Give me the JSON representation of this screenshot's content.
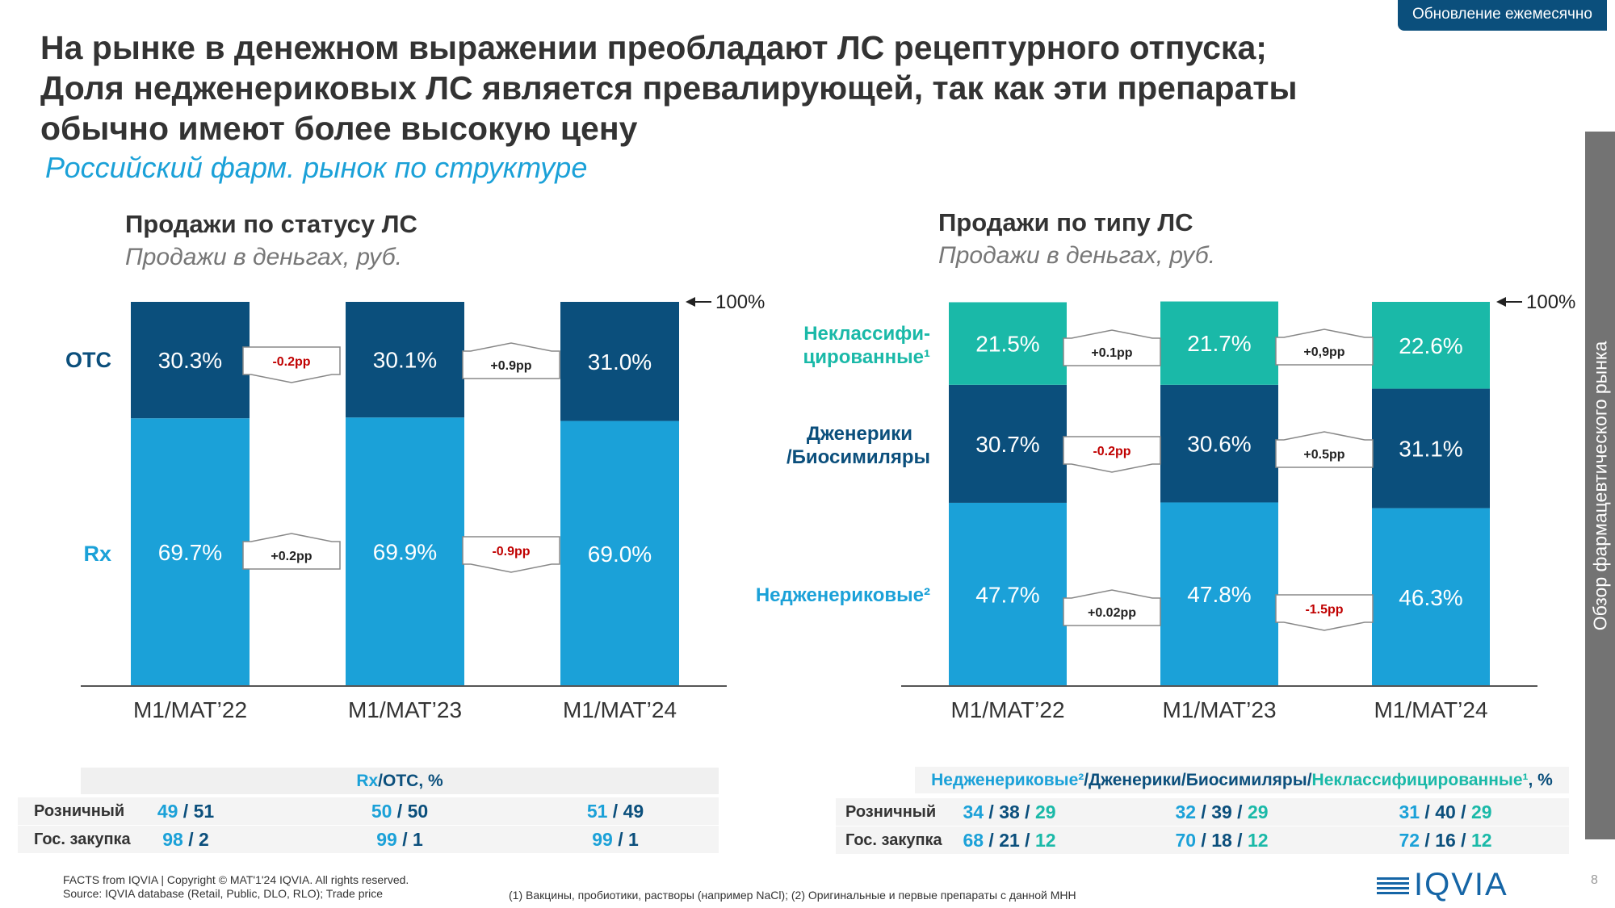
{
  "badge": "Обновление ежемесячно",
  "title_lines": [
    "На рынке в денежном выражении преобладают ЛС рецептурного отпуска;",
    "Доля недженериковых ЛС является превалирующей, так как эти препараты",
    "обычно имеют более высокую цену"
  ],
  "subtitle": "Российский фарм. рынок по структуре",
  "side_tab": "Обзор фармацевтического рынка",
  "colors": {
    "rx": "#1ba1d8",
    "otc": "#0b4f7c",
    "dark_blue": "#0b4f7c",
    "teal": "#1ab9a8",
    "negative": "#c00000"
  },
  "chart_data": [
    {
      "type": "bar",
      "stacked": true,
      "title": "Продажи по статусу ЛС",
      "subtitle": "Продажи в деньгах, руб.",
      "categories": [
        "M1/MAT’22",
        "M1/MAT’23",
        "M1/MAT’24"
      ],
      "series": [
        {
          "name": "Rx",
          "values": [
            69.7,
            69.9,
            69.0
          ],
          "labels": [
            "69.7%",
            "69.9%",
            "69.0%"
          ],
          "color": "#1ba1d8"
        },
        {
          "name": "OTC",
          "values": [
            30.3,
            30.1,
            31.0
          ],
          "labels": [
            "30.3%",
            "30.1%",
            "31.0%"
          ],
          "color": "#0b4f7c"
        }
      ],
      "total_label": "100%",
      "ylim": [
        0,
        100
      ],
      "changes": {
        "OTC": [
          {
            "label": "-0.2pp",
            "direction": "down"
          },
          {
            "label": "+0.9pp",
            "direction": "up"
          }
        ],
        "Rx": [
          {
            "label": "+0.2pp",
            "direction": "up"
          },
          {
            "label": "-0.9pp",
            "direction": "down"
          }
        ]
      }
    },
    {
      "type": "bar",
      "stacked": true,
      "title": "Продажи по типу ЛС",
      "subtitle": "Продажи в деньгах, руб.",
      "categories": [
        "M1/MAT’22",
        "M1/MAT’23",
        "M1/MAT’24"
      ],
      "series": [
        {
          "name": "Недженериковые²",
          "values": [
            47.7,
            47.8,
            46.3
          ],
          "labels": [
            "47.7%",
            "47.8%",
            "46.3%"
          ],
          "color": "#1ba1d8"
        },
        {
          "name": "Дженерики /Биосимиляры",
          "name_lines": [
            "Дженерики",
            "/Биосимиляры"
          ],
          "values": [
            30.7,
            30.6,
            31.1
          ],
          "labels": [
            "30.7%",
            "30.6%",
            "31.1%"
          ],
          "color": "#0b4f7c"
        },
        {
          "name": "Неклассифи- цированные¹",
          "name_lines": [
            "Неклассифи-",
            "цированные¹"
          ],
          "values": [
            21.5,
            21.7,
            22.6
          ],
          "labels": [
            "21.5%",
            "21.7%",
            "22.6%"
          ],
          "color": "#1ab9a8"
        }
      ],
      "total_label": "100%",
      "ylim": [
        0,
        100
      ],
      "changes": {
        "Неклассифицированные": [
          {
            "label": "+0.1pp",
            "direction": "up"
          },
          {
            "label": "+0,9pp",
            "direction": "up"
          }
        ],
        "Дженерики": [
          {
            "label": "-0.2pp",
            "direction": "down"
          },
          {
            "label": "+0.5pp",
            "direction": "up"
          }
        ],
        "Недженериковые": [
          {
            "label": "+0.02pp",
            "direction": "up"
          },
          {
            "label": "-1.5pp",
            "direction": "down"
          }
        ]
      }
    }
  ],
  "table_left": {
    "header": {
      "rx": "Rx",
      "sep": " / ",
      "otc": "OTC",
      "unit": ", %"
    },
    "rows": [
      {
        "label": "Розничный",
        "values": [
          [
            "49",
            "51"
          ],
          [
            "50",
            "50"
          ],
          [
            "51",
            "49"
          ]
        ]
      },
      {
        "label": "Гос. закупка",
        "values": [
          [
            "98",
            "2"
          ],
          [
            "99",
            "1"
          ],
          [
            "99",
            "1"
          ]
        ]
      }
    ]
  },
  "table_right": {
    "header": {
      "a": "Недженериковые²",
      "b": "Дженерики/Биосимиляры",
      "c": "Неклассифицированные¹",
      "sep": " / ",
      "unit": ", %"
    },
    "rows": [
      {
        "label": "Розничный",
        "values": [
          [
            "34",
            "38",
            "29"
          ],
          [
            "32",
            "39",
            "29"
          ],
          [
            "31",
            "40",
            "29"
          ]
        ]
      },
      {
        "label": "Гос. закупка",
        "values": [
          [
            "68",
            "21",
            "12"
          ],
          [
            "70",
            "18",
            "12"
          ],
          [
            "72",
            "16",
            "12"
          ]
        ]
      }
    ]
  },
  "footer": {
    "copyright": "FACTS from IQVIA | Copyright © MAT'1'24 IQVIA. All rights reserved.",
    "source": "Source: IQVIA database (Retail, Public, DLO, RLO); Trade price",
    "note": "(1) Вакцины, пробиотики, растворы (например NaCl); (2) Оригинальные и первые препараты с данной МНН",
    "logo": "IQVIA",
    "page": "8"
  }
}
